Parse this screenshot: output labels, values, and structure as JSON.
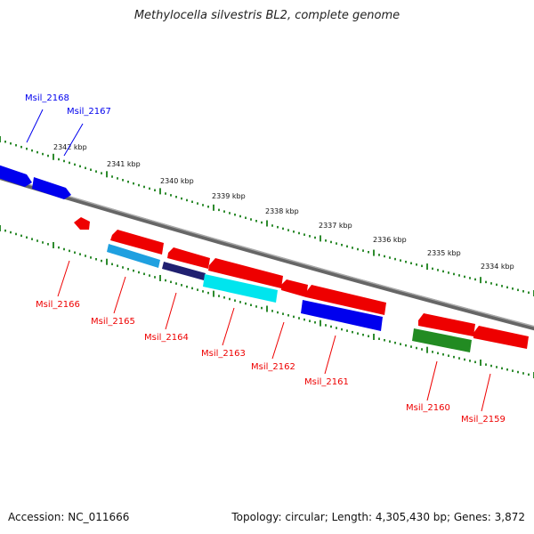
{
  "title": "Methylocella silvestris BL2, complete genome",
  "footer": {
    "accession": "Accession: NC_011666",
    "topology": "Topology: circular; Length: 4,305,430 bp; Genes: 3,872"
  },
  "scale_ticks": [
    "2342 kbp",
    "2341 kbp",
    "2340 kbp",
    "2339 kbp",
    "2338 kbp",
    "2337 kbp",
    "2336 kbp",
    "2335 kbp",
    "2334 kbp"
  ],
  "genes": [
    {
      "locus": "Msil_2168",
      "strand": "+",
      "color": "#0000ee"
    },
    {
      "locus": "Msil_2167",
      "strand": "+",
      "color": "#0000ee"
    },
    {
      "locus": "Msil_2166",
      "strand": "-",
      "color": "#ee0000"
    },
    {
      "locus": "Msil_2165",
      "strand": "-",
      "color": "#ee0000"
    },
    {
      "locus": "Msil_2164",
      "strand": "-",
      "color": "#ee0000"
    },
    {
      "locus": "Msil_2163",
      "strand": "-",
      "color": "#ee0000"
    },
    {
      "locus": "Msil_2162",
      "strand": "-",
      "color": "#ee0000"
    },
    {
      "locus": "Msil_2161",
      "strand": "-",
      "color": "#ee0000"
    },
    {
      "locus": "Msil_2160",
      "strand": "-",
      "color": "#ee0000"
    },
    {
      "locus": "Msil_2159",
      "strand": "-",
      "color": "#ee0000"
    }
  ],
  "colors": {
    "backbone": "#808080",
    "tick": "#2e8b2e",
    "cds_red": "#ee0000",
    "cds_blue": "#0000ee",
    "feature_cyan": "#00e5ee",
    "feature_skyblue": "#1fa0e0",
    "feature_green": "#228b22",
    "feature_navy": "#202070"
  }
}
